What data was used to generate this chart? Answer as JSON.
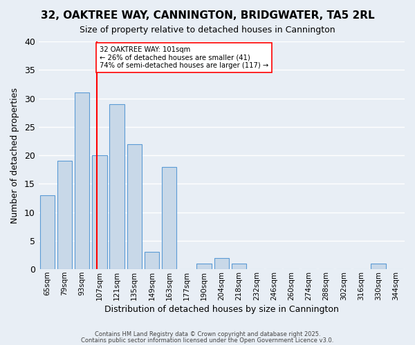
{
  "title": "32, OAKTREE WAY, CANNINGTON, BRIDGWATER, TA5 2RL",
  "subtitle": "Size of property relative to detached houses in Cannington",
  "xlabel": "Distribution of detached houses by size in Cannington",
  "ylabel": "Number of detached properties",
  "bar_color": "#c8d8e8",
  "bar_edge_color": "#5b9bd5",
  "background_color": "#e8eef5",
  "grid_color": "#ffffff",
  "categories": [
    "65sqm",
    "79sqm",
    "93sqm",
    "107sqm",
    "121sqm",
    "135sqm",
    "149sqm",
    "163sqm",
    "177sqm",
    "190sqm",
    "204sqm",
    "218sqm",
    "232sqm",
    "246sqm",
    "260sqm",
    "274sqm",
    "288sqm",
    "302sqm",
    "316sqm",
    "330sqm",
    "344sqm"
  ],
  "values": [
    13,
    19,
    31,
    20,
    29,
    22,
    3,
    18,
    0,
    1,
    2,
    1,
    0,
    0,
    0,
    0,
    0,
    0,
    0,
    1,
    0
  ],
  "ylim": [
    0,
    40
  ],
  "yticks": [
    0,
    5,
    10,
    15,
    20,
    25,
    30,
    35,
    40
  ],
  "property_line_x": 2.85,
  "annotation_title": "32 OAKTREE WAY: 101sqm",
  "annotation_line1": "← 26% of detached houses are smaller (41)",
  "annotation_line2": "74% of semi-detached houses are larger (117) →",
  "footer1": "Contains HM Land Registry data © Crown copyright and database right 2025.",
  "footer2": "Contains public sector information licensed under the Open Government Licence v3.0."
}
